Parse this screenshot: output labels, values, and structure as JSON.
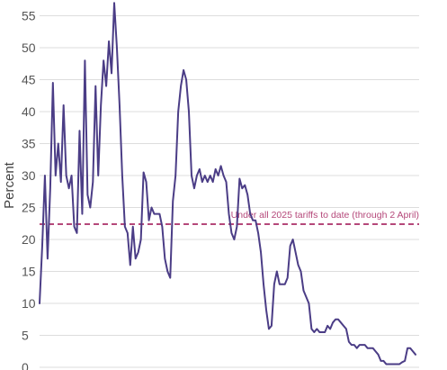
{
  "chart_data": {
    "type": "line",
    "ylabel": "Percent",
    "xlabel": "",
    "ylim": [
      0,
      57
    ],
    "yticks": [
      0,
      5,
      10,
      15,
      20,
      25,
      30,
      35,
      40,
      45,
      50,
      55
    ],
    "grid": "horizontal",
    "colors": {
      "line": "#4b3d86",
      "reference": "#b5487a",
      "grid": "#dddddd"
    },
    "reference_line": {
      "value": 22.4,
      "label": "Under all 2025 tariffs to date (through 2 April)"
    },
    "series": [
      {
        "values": [
          10,
          19,
          30,
          17,
          28,
          44.5,
          30,
          35,
          29,
          41,
          30,
          28,
          30,
          22,
          21,
          37,
          24,
          48,
          27,
          25,
          29,
          44,
          30,
          41,
          48,
          44,
          51,
          46,
          57,
          50,
          41,
          30,
          22,
          21,
          16,
          22,
          17,
          18,
          20,
          30.5,
          29,
          23,
          25,
          24,
          24,
          24,
          22,
          17,
          15,
          14,
          26,
          30,
          40,
          44,
          46.5,
          45,
          40,
          30,
          28,
          30,
          31,
          29,
          30,
          29,
          30,
          29,
          31,
          30,
          31.5,
          30,
          29,
          24,
          21,
          20,
          22,
          29.5,
          28,
          28.5,
          27,
          24,
          23,
          23,
          21,
          18,
          13,
          9,
          6,
          6.5,
          13,
          15,
          13,
          13,
          13,
          14,
          19,
          20,
          18,
          16,
          15,
          12,
          11,
          10,
          6,
          5.5,
          6,
          5.5,
          5.5,
          5.5,
          6.5,
          6,
          7,
          7.5,
          7.5,
          7,
          6.5,
          6,
          4,
          3.5,
          3.5,
          3,
          3.5,
          3.5,
          3.5,
          3,
          3,
          3,
          2.5,
          2,
          1,
          1,
          0.5,
          0.5,
          0.5,
          0.5,
          0.5,
          0.5,
          0.8,
          1,
          3,
          3,
          2.5,
          2
        ]
      }
    ]
  }
}
